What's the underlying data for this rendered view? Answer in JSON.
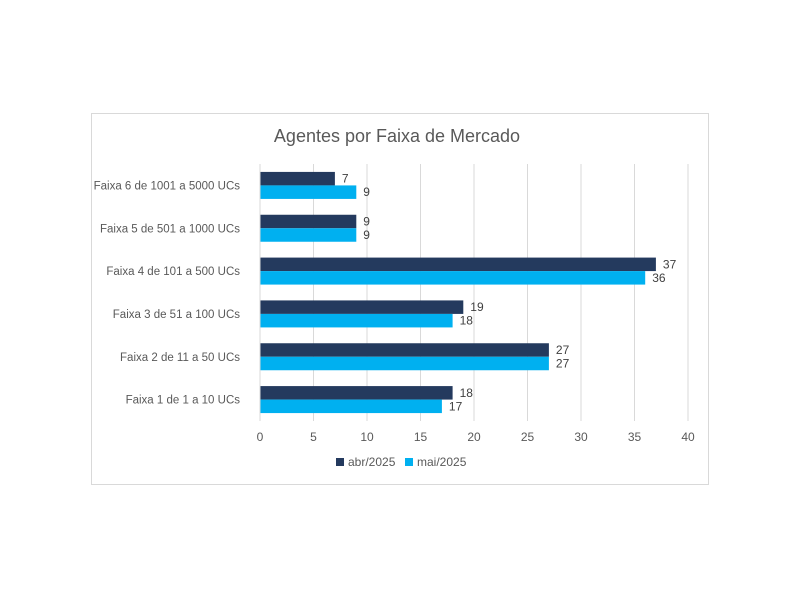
{
  "chart_data": {
    "type": "bar",
    "orientation": "horizontal",
    "title": "Agentes por Faixa de Mercado",
    "categories": [
      "Faixa 6 de 1001 a 5000 UCs",
      "Faixa 5 de 501 a 1000 UCs",
      "Faixa 4 de 101 a 500 UCs",
      "Faixa 3 de 51 a 100 UCs",
      "Faixa 2 de 11 a 50 UCs",
      "Faixa 1 de 1 a 10 UCs"
    ],
    "series": [
      {
        "name": "abr/2025",
        "color": "#243a5e",
        "values": [
          7,
          9,
          37,
          19,
          27,
          18
        ]
      },
      {
        "name": "mai/2025",
        "color": "#00b0f0",
        "values": [
          9,
          9,
          36,
          18,
          27,
          17
        ]
      }
    ],
    "xlim": [
      0,
      40
    ],
    "xticks": [
      0,
      5,
      10,
      15,
      20,
      25,
      30,
      35,
      40
    ],
    "grid": "vertical",
    "legend": "bottom",
    "data_labels": true
  }
}
